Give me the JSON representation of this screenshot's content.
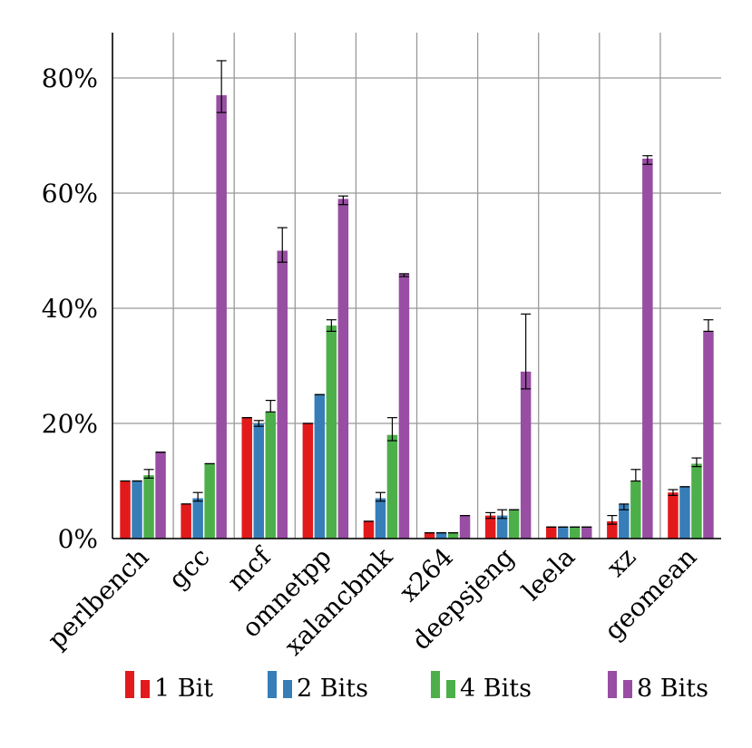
{
  "chart_data": {
    "type": "bar",
    "title": "",
    "xlabel": "",
    "ylabel": "",
    "ylim": [
      0,
      85
    ],
    "y_ticks": [
      {
        "value": 0,
        "label": "0%"
      },
      {
        "value": 20,
        "label": "20%"
      },
      {
        "value": 40,
        "label": "40%"
      },
      {
        "value": 60,
        "label": "60%"
      },
      {
        "value": 80,
        "label": "80%"
      }
    ],
    "grid": true,
    "legend_position": "bottom",
    "categories": [
      "perlbench",
      "gcc",
      "mcf",
      "omnetpp",
      "xalancbmk",
      "x264",
      "deepsjeng",
      "leela",
      "xz",
      "geomean"
    ],
    "series": [
      {
        "name": "1 Bit",
        "color": "#e31a1c",
        "values": [
          10,
          6,
          21,
          20,
          3,
          1,
          4,
          2,
          3,
          8
        ],
        "err_low": [
          0,
          0,
          0,
          0,
          0,
          0,
          0.5,
          0,
          0.5,
          0.5
        ],
        "err_high": [
          0,
          0,
          0,
          0,
          0,
          0,
          0.5,
          0,
          1,
          0.5
        ]
      },
      {
        "name": "2 Bits",
        "color": "#377eb8",
        "values": [
          10,
          7,
          20,
          25,
          7,
          1,
          4,
          2,
          6,
          9
        ],
        "err_low": [
          0,
          0.5,
          0.5,
          0,
          0.5,
          0,
          0.5,
          0,
          1,
          0
        ],
        "err_high": [
          0,
          1,
          0.5,
          0,
          1,
          0,
          1,
          0,
          0,
          0
        ]
      },
      {
        "name": "4 Bits",
        "color": "#4daf4a",
        "values": [
          11,
          13,
          22,
          37,
          18,
          1,
          5,
          2,
          10,
          13
        ],
        "err_low": [
          0.5,
          0,
          0,
          1,
          1,
          0,
          0,
          0,
          0,
          0.5
        ],
        "err_high": [
          1,
          0,
          2,
          1,
          3,
          0,
          0,
          0,
          2,
          1
        ]
      },
      {
        "name": "8 Bits",
        "color": "#984ea3",
        "values": [
          15,
          77,
          50,
          59,
          46,
          4,
          29,
          2,
          66,
          36
        ],
        "err_low": [
          0,
          3,
          2,
          1,
          0.5,
          0,
          3,
          0,
          1,
          0
        ],
        "err_high": [
          0,
          6,
          4,
          0.5,
          0,
          0,
          10,
          0,
          0.5,
          2
        ]
      }
    ]
  }
}
